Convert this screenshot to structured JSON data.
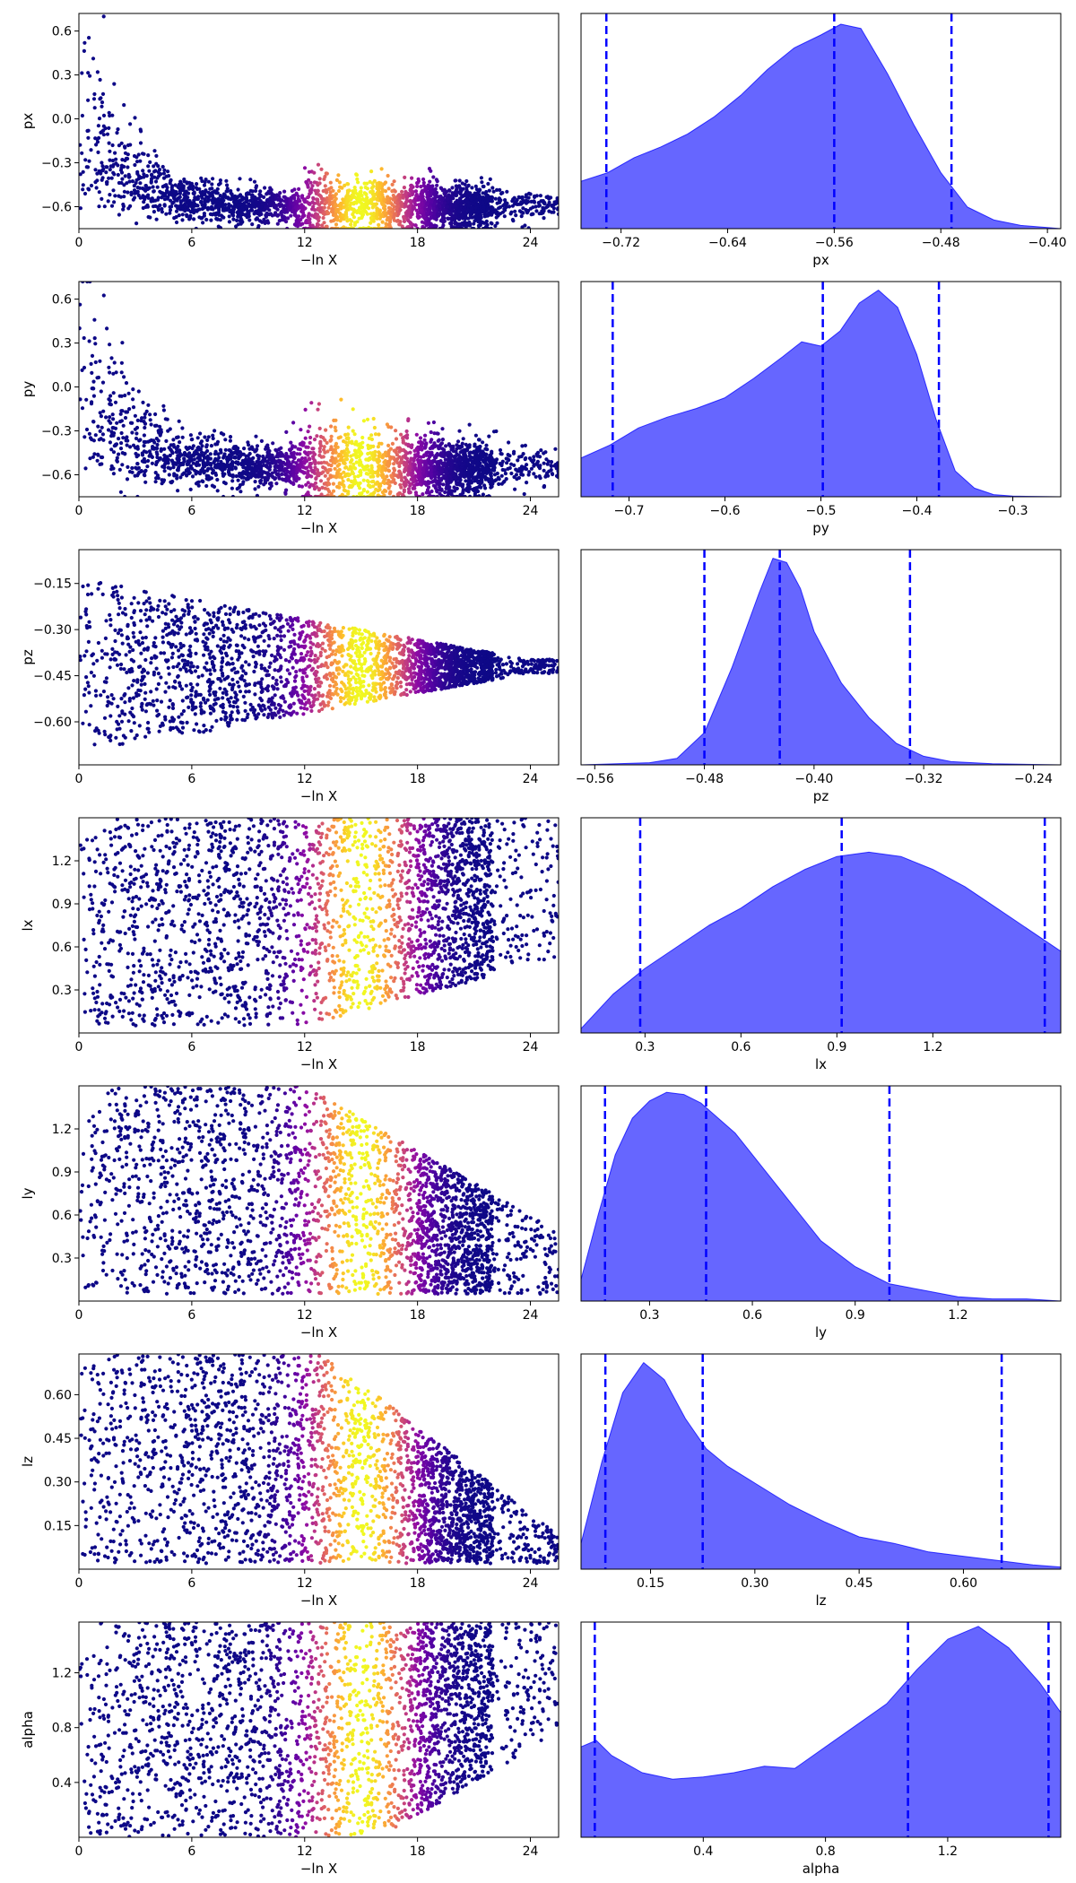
{
  "chart_data": [
    {
      "type": "scatter",
      "panel": "trace",
      "row": 0,
      "xlabel": "−ln X",
      "ylabel": "px",
      "xlim": [
        0,
        25.5
      ],
      "ylim": [
        -0.75,
        0.72
      ],
      "xticks": [
        0,
        6,
        12,
        18,
        24
      ],
      "yticks": [
        0.6,
        0.3,
        0.0,
        -0.3,
        -0.6
      ],
      "ytick_labels": [
        "0.6",
        "0.3",
        "0.0",
        "−0.3",
        "−0.6"
      ],
      "shape": "px",
      "colormap": "plasma",
      "peak_x": 15
    },
    {
      "type": "area",
      "panel": "marginal",
      "row": 0,
      "xlabel": "px",
      "xlim": [
        -0.75,
        -0.39
      ],
      "xticks": [
        -0.72,
        -0.64,
        -0.56,
        -0.48,
        -0.4
      ],
      "xtick_labels": [
        "−0.72",
        "−0.64",
        "−0.56",
        "−0.48",
        "−0.40"
      ],
      "quantiles": [
        -0.731,
        -0.56,
        -0.472
      ],
      "x": [
        -0.75,
        -0.73,
        -0.71,
        -0.69,
        -0.67,
        -0.65,
        -0.63,
        -0.61,
        -0.59,
        -0.57,
        -0.555,
        -0.54,
        -0.52,
        -0.5,
        -0.48,
        -0.46,
        -0.44,
        -0.42,
        -0.4,
        -0.39
      ],
      "y": [
        0.22,
        0.26,
        0.33,
        0.38,
        0.44,
        0.52,
        0.62,
        0.74,
        0.84,
        0.9,
        0.95,
        0.93,
        0.72,
        0.48,
        0.26,
        0.1,
        0.04,
        0.015,
        0.005,
        0.0
      ]
    },
    {
      "type": "scatter",
      "panel": "trace",
      "row": 1,
      "xlabel": "−ln X",
      "ylabel": "py",
      "xlim": [
        0,
        25.5
      ],
      "ylim": [
        -0.75,
        0.72
      ],
      "xticks": [
        0,
        6,
        12,
        18,
        24
      ],
      "yticks": [
        0.6,
        0.3,
        0.0,
        -0.3,
        -0.6
      ],
      "ytick_labels": [
        "0.6",
        "0.3",
        "0.0",
        "−0.3",
        "−0.6"
      ],
      "shape": "py",
      "colormap": "plasma",
      "peak_x": 15
    },
    {
      "type": "area",
      "panel": "marginal",
      "row": 1,
      "xlabel": "py",
      "xlim": [
        -0.75,
        -0.25
      ],
      "xticks": [
        -0.7,
        -0.6,
        -0.5,
        -0.4,
        -0.3
      ],
      "xtick_labels": [
        "−0.7",
        "−0.6",
        "−0.5",
        "−0.4",
        "−0.3"
      ],
      "quantiles": [
        -0.717,
        -0.498,
        -0.377
      ],
      "x": [
        -0.75,
        -0.72,
        -0.69,
        -0.66,
        -0.63,
        -0.6,
        -0.57,
        -0.54,
        -0.52,
        -0.5,
        -0.48,
        -0.46,
        -0.44,
        -0.42,
        -0.4,
        -0.38,
        -0.36,
        -0.34,
        -0.32,
        -0.3,
        -0.25
      ],
      "y": [
        0.18,
        0.24,
        0.32,
        0.37,
        0.41,
        0.46,
        0.55,
        0.65,
        0.72,
        0.7,
        0.77,
        0.9,
        0.96,
        0.88,
        0.66,
        0.36,
        0.12,
        0.04,
        0.01,
        0.003,
        0.0
      ]
    },
    {
      "type": "scatter",
      "panel": "trace",
      "row": 2,
      "xlabel": "−ln X",
      "ylabel": "pz",
      "xlim": [
        0,
        25.5
      ],
      "ylim": [
        -0.74,
        -0.04
      ],
      "xticks": [
        0,
        6,
        12,
        18,
        24
      ],
      "yticks": [
        -0.15,
        -0.3,
        -0.45,
        -0.6
      ],
      "ytick_labels": [
        "−0.15",
        "−0.30",
        "−0.45",
        "−0.60"
      ],
      "shape": "pz",
      "colormap": "plasma",
      "peak_x": 15
    },
    {
      "type": "area",
      "panel": "marginal",
      "row": 2,
      "xlabel": "pz",
      "xlim": [
        -0.57,
        -0.22
      ],
      "xticks": [
        -0.56,
        -0.48,
        -0.4,
        -0.32,
        -0.24
      ],
      "xtick_labels": [
        "−0.56",
        "−0.48",
        "−0.40",
        "−0.32",
        "−0.24"
      ],
      "quantiles": [
        -0.48,
        -0.425,
        -0.33
      ],
      "x": [
        -0.57,
        -0.52,
        -0.5,
        -0.48,
        -0.46,
        -0.44,
        -0.43,
        -0.42,
        -0.41,
        -0.4,
        -0.38,
        -0.36,
        -0.34,
        -0.32,
        -0.3,
        -0.27,
        -0.22
      ],
      "y": [
        0.0,
        0.01,
        0.03,
        0.15,
        0.45,
        0.8,
        0.96,
        0.94,
        0.82,
        0.62,
        0.38,
        0.22,
        0.1,
        0.04,
        0.015,
        0.005,
        0.0
      ]
    },
    {
      "type": "scatter",
      "panel": "trace",
      "row": 3,
      "xlabel": "−ln X",
      "ylabel": "lx",
      "xlim": [
        0,
        25.5
      ],
      "ylim": [
        0.0,
        1.5
      ],
      "xticks": [
        0,
        6,
        12,
        18,
        24
      ],
      "yticks": [
        1.2,
        0.9,
        0.6,
        0.3
      ],
      "ytick_labels": [
        "1.2",
        "0.9",
        "0.6",
        "0.3"
      ],
      "shape": "lx",
      "colormap": "plasma",
      "peak_x": 15
    },
    {
      "type": "area",
      "panel": "marginal",
      "row": 3,
      "xlabel": "lx",
      "xlim": [
        0.1,
        1.6
      ],
      "xticks": [
        0.3,
        0.6,
        0.9,
        1.2
      ],
      "xtick_labels": [
        "0.3",
        "0.6",
        "0.9",
        "1.2"
      ],
      "quantiles": [
        0.285,
        0.915,
        1.55
      ],
      "x": [
        0.1,
        0.2,
        0.3,
        0.4,
        0.5,
        0.6,
        0.7,
        0.8,
        0.9,
        1.0,
        1.1,
        1.2,
        1.3,
        1.4,
        1.5,
        1.6
      ],
      "y": [
        0.02,
        0.18,
        0.3,
        0.4,
        0.5,
        0.58,
        0.68,
        0.76,
        0.82,
        0.84,
        0.82,
        0.76,
        0.68,
        0.58,
        0.48,
        0.38
      ]
    },
    {
      "type": "scatter",
      "panel": "trace",
      "row": 4,
      "xlabel": "−ln X",
      "ylabel": "ly",
      "xlim": [
        0,
        25.5
      ],
      "ylim": [
        0.0,
        1.5
      ],
      "xticks": [
        0,
        6,
        12,
        18,
        24
      ],
      "yticks": [
        1.2,
        0.9,
        0.6,
        0.3
      ],
      "ytick_labels": [
        "1.2",
        "0.9",
        "0.6",
        "0.3"
      ],
      "shape": "ly",
      "colormap": "plasma",
      "peak_x": 15
    },
    {
      "type": "area",
      "panel": "marginal",
      "row": 4,
      "xlabel": "ly",
      "xlim": [
        0.1,
        1.5
      ],
      "xticks": [
        0.3,
        0.6,
        0.9,
        1.2
      ],
      "xtick_labels": [
        "0.3",
        "0.6",
        "0.9",
        "1.2"
      ],
      "quantiles": [
        0.17,
        0.465,
        1.0
      ],
      "x": [
        0.1,
        0.15,
        0.2,
        0.25,
        0.3,
        0.35,
        0.4,
        0.45,
        0.5,
        0.55,
        0.6,
        0.7,
        0.8,
        0.9,
        1.0,
        1.1,
        1.2,
        1.3,
        1.4,
        1.5
      ],
      "y": [
        0.1,
        0.4,
        0.68,
        0.85,
        0.93,
        0.97,
        0.96,
        0.92,
        0.85,
        0.78,
        0.68,
        0.48,
        0.28,
        0.16,
        0.08,
        0.05,
        0.02,
        0.01,
        0.01,
        0.0
      ]
    },
    {
      "type": "scatter",
      "panel": "trace",
      "row": 5,
      "xlabel": "−ln X",
      "ylabel": "lz",
      "xlim": [
        0,
        25.5
      ],
      "ylim": [
        0.0,
        0.74
      ],
      "xticks": [
        0,
        6,
        12,
        18,
        24
      ],
      "yticks": [
        0.6,
        0.45,
        0.3,
        0.15
      ],
      "ytick_labels": [
        "0.60",
        "0.45",
        "0.30",
        "0.15"
      ],
      "shape": "lz",
      "colormap": "plasma",
      "peak_x": 15
    },
    {
      "type": "area",
      "panel": "marginal",
      "row": 5,
      "xlabel": "lz",
      "xlim": [
        0.05,
        0.74
      ],
      "xticks": [
        0.15,
        0.3,
        0.45,
        0.6
      ],
      "xtick_labels": [
        "0.15",
        "0.30",
        "0.45",
        "0.60"
      ],
      "quantiles": [
        0.085,
        0.225,
        0.655
      ],
      "x": [
        0.05,
        0.08,
        0.11,
        0.14,
        0.17,
        0.2,
        0.23,
        0.26,
        0.3,
        0.35,
        0.4,
        0.45,
        0.5,
        0.55,
        0.6,
        0.65,
        0.7,
        0.74
      ],
      "y": [
        0.12,
        0.5,
        0.82,
        0.96,
        0.88,
        0.7,
        0.56,
        0.48,
        0.4,
        0.3,
        0.22,
        0.15,
        0.12,
        0.08,
        0.06,
        0.04,
        0.02,
        0.01
      ]
    },
    {
      "type": "scatter",
      "panel": "trace",
      "row": 6,
      "xlabel": "−ln X",
      "ylabel": "alpha",
      "xlim": [
        0,
        25.5
      ],
      "ylim": [
        0.0,
        1.57
      ],
      "xticks": [
        0,
        6,
        12,
        18,
        24
      ],
      "yticks": [
        1.2,
        0.8,
        0.4
      ],
      "ytick_labels": [
        "1.2",
        "0.8",
        "0.4"
      ],
      "shape": "alpha",
      "colormap": "plasma",
      "peak_x": 15
    },
    {
      "type": "area",
      "panel": "marginal",
      "row": 6,
      "xlabel": "alpha",
      "xlim": [
        0.0,
        1.57
      ],
      "xticks": [
        0.4,
        0.8,
        1.2
      ],
      "xtick_labels": [
        "0.4",
        "0.8",
        "1.2"
      ],
      "quantiles": [
        0.045,
        1.07,
        1.53
      ],
      "x": [
        0.0,
        0.05,
        0.1,
        0.2,
        0.3,
        0.4,
        0.5,
        0.6,
        0.7,
        0.8,
        0.9,
        1.0,
        1.1,
        1.2,
        1.3,
        1.4,
        1.5,
        1.57
      ],
      "y": [
        0.42,
        0.45,
        0.38,
        0.3,
        0.27,
        0.28,
        0.3,
        0.33,
        0.32,
        0.42,
        0.52,
        0.62,
        0.78,
        0.92,
        0.98,
        0.88,
        0.72,
        0.58
      ]
    }
  ]
}
